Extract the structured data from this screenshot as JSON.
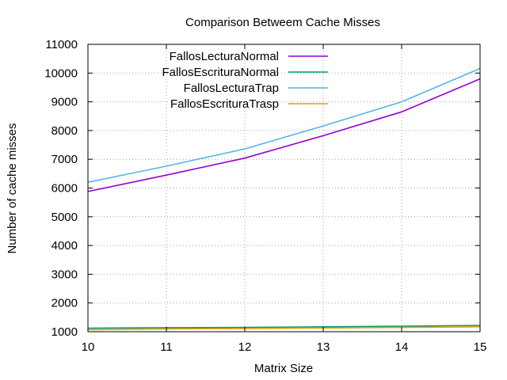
{
  "chart_data": {
    "type": "line",
    "title": "Comparison Betweem Cache Misses",
    "xlabel": "Matrix Size",
    "ylabel": "Number of cache misses",
    "xlim": [
      10,
      15
    ],
    "ylim": [
      1000,
      11000
    ],
    "x_ticks": [
      10,
      11,
      12,
      13,
      14,
      15
    ],
    "y_ticks": [
      1000,
      2000,
      3000,
      4000,
      5000,
      6000,
      7000,
      8000,
      9000,
      10000,
      11000
    ],
    "grid": true,
    "legend_position": "top-left",
    "x": [
      10,
      11,
      12,
      13,
      14,
      15
    ],
    "series": [
      {
        "name": "FallosLecturaNormal",
        "color": "#9400d3",
        "values": [
          5880,
          6450,
          7040,
          7820,
          8650,
          9800
        ]
      },
      {
        "name": "FallosEscrituraNormal",
        "color": "#009e73",
        "values": [
          1120,
          1140,
          1150,
          1170,
          1190,
          1220
        ]
      },
      {
        "name": "FallosLecturaTrap",
        "color": "#56b4e9",
        "values": [
          6200,
          6760,
          7360,
          8160,
          9000,
          10160
        ]
      },
      {
        "name": "FallosEscrituraTrasp",
        "color": "#e69f00",
        "values": [
          1070,
          1100,
          1110,
          1130,
          1150,
          1170
        ]
      }
    ]
  }
}
